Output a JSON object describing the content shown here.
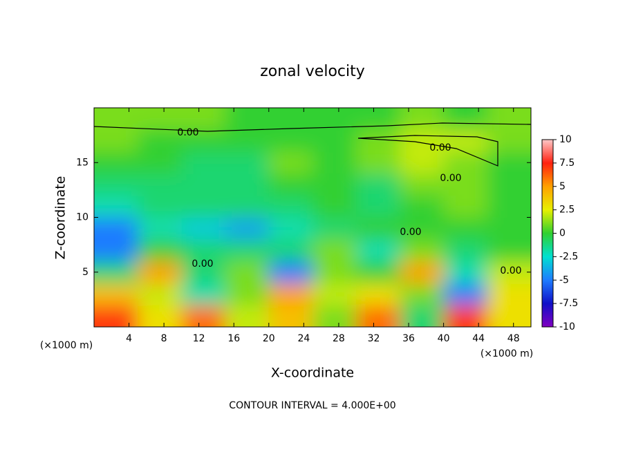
{
  "chart_data": {
    "type": "contour",
    "title": "zonal velocity",
    "x_label": "X-coordinate",
    "y_label": "Z-coordinate",
    "x_unit": "(×1000 m)",
    "footer": "CONTOUR INTERVAL = 4.000E+00",
    "contour_label": "0.00",
    "xlim": [
      0,
      50
    ],
    "ylim": [
      0,
      20
    ],
    "xticks": [
      4,
      8,
      12,
      16,
      20,
      24,
      28,
      32,
      36,
      40,
      44,
      48
    ],
    "yticks": [
      5,
      10,
      15
    ],
    "x": [
      2.5,
      7.5,
      12.5,
      17.5,
      22.5,
      27.5,
      32.5,
      37.5,
      42.5,
      47.5
    ],
    "z": [
      1,
      3,
      5,
      7,
      9,
      11,
      13,
      15,
      17,
      19
    ],
    "values": [
      [
        7,
        3,
        6,
        2,
        4,
        1,
        6,
        -1,
        7,
        3
      ],
      [
        4,
        2,
        -2,
        1,
        5,
        2,
        3,
        1,
        -5,
        3
      ],
      [
        -1,
        5,
        -1,
        1,
        -5,
        1,
        0,
        5,
        -2,
        2
      ],
      [
        -5,
        0,
        -1,
        -1,
        -1,
        1,
        -2,
        1,
        -1,
        0
      ],
      [
        -5,
        -2,
        -3,
        -4,
        -2,
        -1,
        0,
        0,
        0,
        0
      ],
      [
        -2,
        -1,
        -1,
        -1,
        -1,
        0,
        -1,
        0,
        1,
        0
      ],
      [
        -1,
        -1,
        -1,
        -1,
        0,
        0,
        -1,
        1,
        1,
        0
      ],
      [
        0,
        0,
        -1,
        -1,
        1,
        0,
        1,
        2,
        1,
        0
      ],
      [
        1,
        0,
        0,
        0,
        0,
        0,
        1,
        2,
        2,
        1
      ],
      [
        1,
        1,
        1,
        0,
        0,
        0,
        0,
        1,
        0,
        1
      ]
    ],
    "colorbar": {
      "ticks": [
        10,
        7.5,
        5,
        2.5,
        0,
        -2.5,
        -5,
        -7.5,
        -10
      ],
      "colors": [
        "#ffc8c8",
        "#ff2010",
        "#ffa000",
        "#e8f000",
        "#30d030",
        "#00e0d0",
        "#1e7cff",
        "#1010c8",
        "#8000c0"
      ]
    }
  }
}
